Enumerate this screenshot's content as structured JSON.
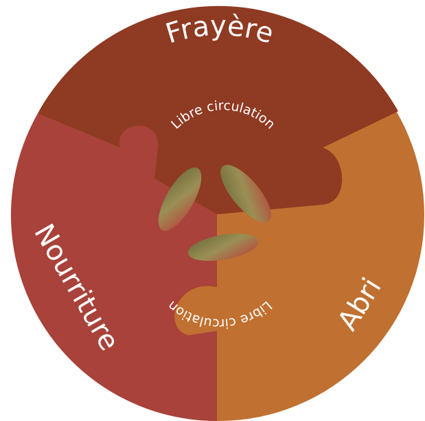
{
  "segments": [
    {
      "label": "Frayère"
    },
    {
      "label": "Nourriture"
    },
    {
      "label": "Abri"
    }
  ],
  "center": {
    "top_label": "Libre circulation",
    "bottom_label": "Libre circulation"
  }
}
